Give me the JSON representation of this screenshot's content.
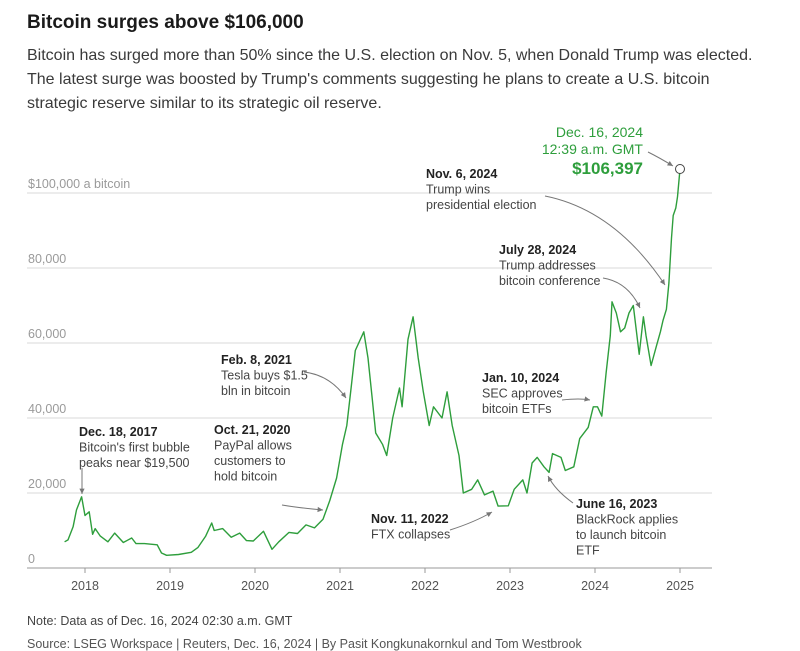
{
  "header": {
    "title": "Bitcoin surges above $106,000",
    "subtitle": "Bitcoin has surged more than 50% since the U.S. election on Nov. 5, when Donald Trump was elected. The latest surge was boosted by Trump's comments suggesting he plans to create a U.S. bitcoin strategic reserve similar to its strategic oil reserve."
  },
  "footer": {
    "note": "Note: Data as of Dec. 16, 2024 02:30 a.m. GMT",
    "source": "Source: LSEG Workspace | Reuters, Dec. 16, 2024 | By Pasit Kongkunakornkul and Tom Westbrook"
  },
  "colors": {
    "line": "#2e9e3c",
    "peak": "#2e9e3c",
    "grid": "#d9d9d9",
    "tick": "#9a9a9a"
  },
  "chart_data": {
    "type": "line",
    "title": "Bitcoin surges above $106,000",
    "xlim": [
      2017.75,
      2025.3
    ],
    "ylim": [
      0,
      110000
    ],
    "grid": true,
    "x_ticks": [
      2018,
      2019,
      2020,
      2021,
      2022,
      2023,
      2024,
      2025
    ],
    "x_tick_labels": [
      "2018",
      "2019",
      "2020",
      "2021",
      "2022",
      "2023",
      "2024",
      "2025"
    ],
    "y_ticks": [
      0,
      20000,
      40000,
      60000,
      80000,
      100000
    ],
    "y_tick_labels": [
      "0",
      "20,000",
      "40,000",
      "60,000",
      "80,000",
      "$100,000 a bitcoin"
    ],
    "series": [
      {
        "name": "",
        "points": [
          [
            2017.76,
            7000
          ],
          [
            2017.8,
            7500
          ],
          [
            2017.86,
            11000
          ],
          [
            2017.9,
            15500
          ],
          [
            2017.96,
            19000
          ],
          [
            2018.0,
            14000
          ],
          [
            2018.05,
            15000
          ],
          [
            2018.09,
            9000
          ],
          [
            2018.12,
            10500
          ],
          [
            2018.18,
            8500
          ],
          [
            2018.27,
            7000
          ],
          [
            2018.35,
            9300
          ],
          [
            2018.45,
            6800
          ],
          [
            2018.55,
            8000
          ],
          [
            2018.6,
            6500
          ],
          [
            2018.7,
            6500
          ],
          [
            2018.85,
            6200
          ],
          [
            2018.9,
            4000
          ],
          [
            2018.96,
            3400
          ],
          [
            2019.1,
            3600
          ],
          [
            2019.25,
            4200
          ],
          [
            2019.33,
            5500
          ],
          [
            2019.42,
            8500
          ],
          [
            2019.49,
            12000
          ],
          [
            2019.52,
            10000
          ],
          [
            2019.62,
            10500
          ],
          [
            2019.72,
            8200
          ],
          [
            2019.82,
            9300
          ],
          [
            2019.9,
            7300
          ],
          [
            2019.98,
            7200
          ],
          [
            2020.1,
            9800
          ],
          [
            2020.2,
            5000
          ],
          [
            2020.28,
            7000
          ],
          [
            2020.4,
            9500
          ],
          [
            2020.5,
            9200
          ],
          [
            2020.6,
            11500
          ],
          [
            2020.7,
            10700
          ],
          [
            2020.8,
            13000
          ],
          [
            2020.88,
            18000
          ],
          [
            2020.96,
            24000
          ],
          [
            2021.03,
            33000
          ],
          [
            2021.08,
            38000
          ],
          [
            2021.13,
            48000
          ],
          [
            2021.18,
            58000
          ],
          [
            2021.28,
            63000
          ],
          [
            2021.33,
            56000
          ],
          [
            2021.38,
            45000
          ],
          [
            2021.42,
            36000
          ],
          [
            2021.5,
            33000
          ],
          [
            2021.55,
            30000
          ],
          [
            2021.62,
            40000
          ],
          [
            2021.7,
            48000
          ],
          [
            2021.73,
            43000
          ],
          [
            2021.8,
            61000
          ],
          [
            2021.86,
            67000
          ],
          [
            2021.92,
            56000
          ],
          [
            2021.98,
            47000
          ],
          [
            2022.05,
            38000
          ],
          [
            2022.1,
            43000
          ],
          [
            2022.2,
            40000
          ],
          [
            2022.26,
            47000
          ],
          [
            2022.32,
            38000
          ],
          [
            2022.4,
            30000
          ],
          [
            2022.45,
            20000
          ],
          [
            2022.55,
            21000
          ],
          [
            2022.62,
            23500
          ],
          [
            2022.7,
            19500
          ],
          [
            2022.8,
            20500
          ],
          [
            2022.86,
            16500
          ],
          [
            2022.98,
            16600
          ],
          [
            2023.05,
            21000
          ],
          [
            2023.15,
            23500
          ],
          [
            2023.2,
            20000
          ],
          [
            2023.26,
            28000
          ],
          [
            2023.32,
            29500
          ],
          [
            2023.4,
            27000
          ],
          [
            2023.46,
            25500
          ],
          [
            2023.5,
            30500
          ],
          [
            2023.6,
            29500
          ],
          [
            2023.65,
            26000
          ],
          [
            2023.75,
            27000
          ],
          [
            2023.82,
            34500
          ],
          [
            2023.92,
            37500
          ],
          [
            2023.98,
            43000
          ],
          [
            2024.03,
            43000
          ],
          [
            2024.08,
            40500
          ],
          [
            2024.13,
            52000
          ],
          [
            2024.18,
            62000
          ],
          [
            2024.2,
            71000
          ],
          [
            2024.25,
            68000
          ],
          [
            2024.3,
            63000
          ],
          [
            2024.35,
            64000
          ],
          [
            2024.4,
            68000
          ],
          [
            2024.45,
            70000
          ],
          [
            2024.52,
            57000
          ],
          [
            2024.57,
            67000
          ],
          [
            2024.6,
            62000
          ],
          [
            2024.66,
            54000
          ],
          [
            2024.72,
            59000
          ],
          [
            2024.77,
            63000
          ],
          [
            2024.8,
            66000
          ],
          [
            2024.84,
            69000
          ],
          [
            2024.87,
            76000
          ],
          [
            2024.9,
            88000
          ],
          [
            2024.92,
            94000
          ],
          [
            2024.95,
            96000
          ],
          [
            2024.97,
            99000
          ],
          [
            2024.99,
            104000
          ],
          [
            2025.0,
            106397
          ]
        ]
      }
    ],
    "peak": {
      "x": 2025.0,
      "y": 106397
    },
    "annotations": [
      {
        "date": "Dec. 18, 2017",
        "text": [
          "Bitcoin's first bubble",
          "peaks near $19,500"
        ],
        "x": 2017.96,
        "y": 19000
      },
      {
        "date": "Oct. 21, 2020",
        "text": [
          "PayPal allows",
          "customers to",
          "hold bitcoin"
        ],
        "x": 2020.8,
        "y": 13000
      },
      {
        "date": "Feb. 8, 2021",
        "text": [
          "Tesla buys $1.5",
          "bln in bitcoin"
        ],
        "x": 2021.1,
        "y": 45000
      },
      {
        "date": "Nov. 11, 2022",
        "text": [
          "FTX collapses"
        ],
        "x": 2022.86,
        "y": 16500
      },
      {
        "date": "Jan. 10, 2024",
        "text": [
          "SEC approves",
          "bitcoin ETFs"
        ],
        "x": 2024.03,
        "y": 46000
      },
      {
        "date": "June 16, 2023",
        "text": [
          "BlackRock applies",
          "to launch bitcoin",
          "ETF"
        ],
        "x": 2023.46,
        "y": 25500
      },
      {
        "date": "July 28, 2024",
        "text": [
          "Trump addresses",
          "bitcoin conference"
        ],
        "x": 2024.57,
        "y": 67000
      },
      {
        "date": "Nov. 6, 2024",
        "text": [
          "Trump wins",
          "presidential election"
        ],
        "x": 2024.85,
        "y": 75000
      },
      {
        "date": "Dec. 16, 2024",
        "text": [
          "12:39 a.m. GMT"
        ],
        "value": "$106,397",
        "x": 2025.0,
        "y": 106397
      }
    ]
  }
}
